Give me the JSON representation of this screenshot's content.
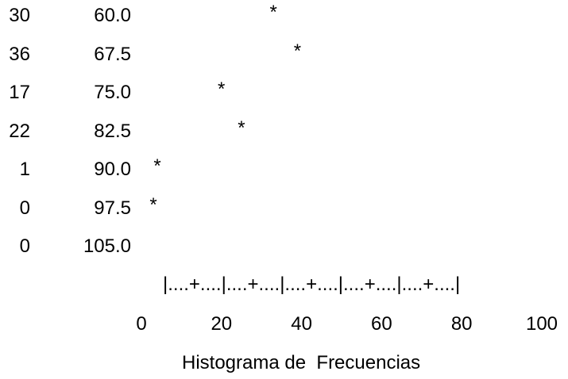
{
  "chart_data": {
    "type": "bar",
    "categories": [
      "60.0",
      "67.5",
      "75.0",
      "82.5",
      "90.0",
      "97.5",
      "105.0"
    ],
    "frequencies": [
      "30",
      "36",
      "17",
      "22",
      "1",
      "0",
      "0"
    ],
    "values": [
      30,
      36,
      17,
      22,
      1,
      0,
      0
    ],
    "marker": "*",
    "scale": "|....+....|....+....|....+....|....+....|....+....|",
    "xticks": [
      "0",
      "20",
      "40",
      "60",
      "80",
      "100"
    ],
    "xlim": [
      0,
      100
    ],
    "title": "Histograma de  Frecuencias"
  }
}
